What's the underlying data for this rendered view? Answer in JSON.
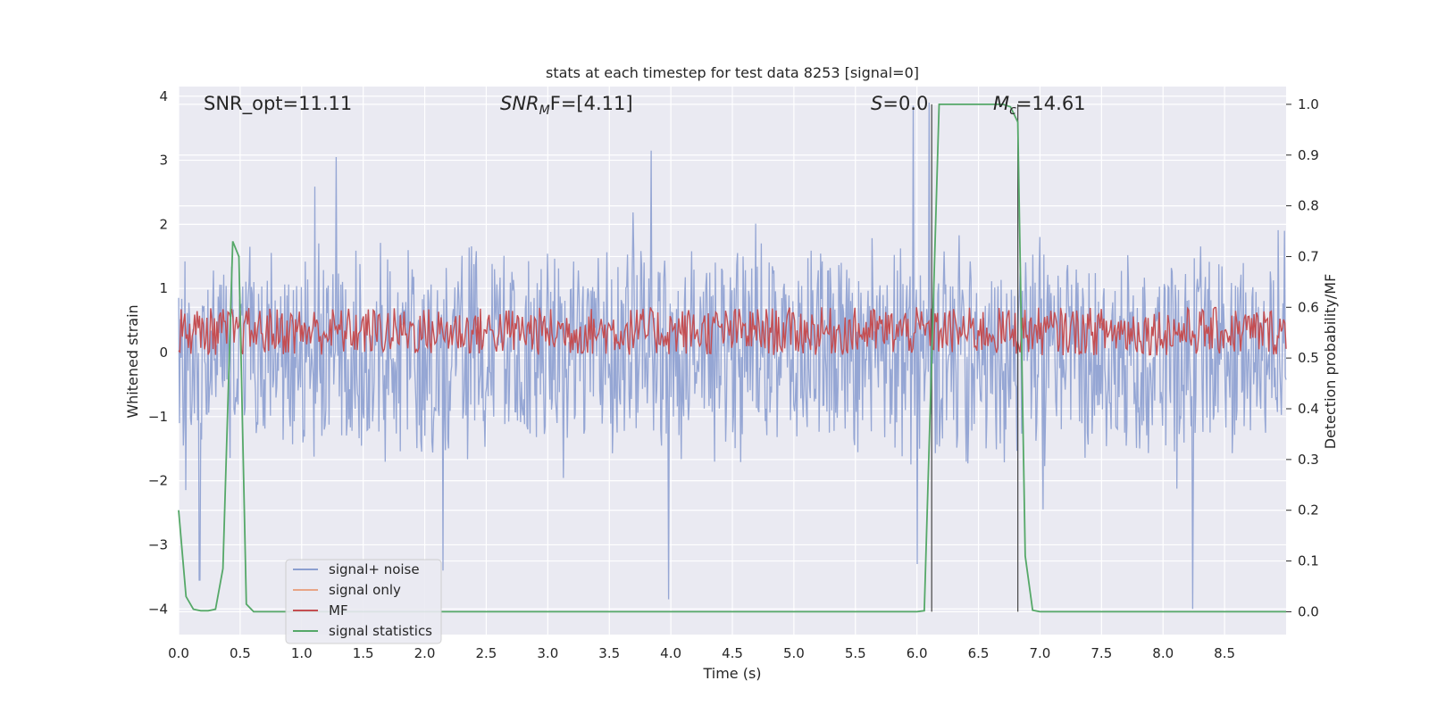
{
  "chart_data": {
    "type": "line",
    "title": "stats at each timestep for test data 8253 [signal=0]",
    "xlabel": "Time (s)",
    "ylabel": "Whitened strain",
    "y2label": "Detection probability/MF",
    "xlim": [
      0,
      9.0
    ],
    "ylim": [
      -4.4,
      4.15
    ],
    "y2lim": [
      -0.045,
      1.035
    ],
    "x_ticks": [
      "0.0",
      "0.5",
      "1.0",
      "1.5",
      "2.0",
      "2.5",
      "3.0",
      "3.5",
      "4.0",
      "4.5",
      "5.0",
      "5.5",
      "6.0",
      "6.5",
      "7.0",
      "7.5",
      "8.0",
      "8.5"
    ],
    "y_ticks": [
      "4",
      "3",
      "2",
      "1",
      "0",
      "−1",
      "−2",
      "−3",
      "−4"
    ],
    "y2_ticks": [
      "1.0",
      "0.9",
      "0.8",
      "0.7",
      "0.6",
      "0.5",
      "0.4",
      "0.3",
      "0.2",
      "0.1",
      "0.0"
    ],
    "grid": true,
    "legend_position": "lower-left",
    "annotations": {
      "snr_opt": "SNR_opt=11.11",
      "snr_mf_main": "SNR",
      "snr_mf_sub": "M",
      "snr_mf_rest": "F=[4.11]",
      "s_var": "S",
      "s_rest": "=0.0",
      "mc_var": "M",
      "mc_sub": "c",
      "mc_rest": "=14.61"
    },
    "vertical_lines_x": [
      6.12,
      6.82
    ],
    "series": [
      {
        "name": "signal+ noise",
        "color": "#8c9fd0",
        "envelope": {
          "typical_low": -1.75,
          "typical_high": 1.75,
          "peaks": [
            [
              1.28,
              3.05
            ],
            [
              3.84,
              3.15
            ],
            [
              5.97,
              3.85
            ],
            [
              6.1,
              3.9
            ],
            [
              0.17,
              -3.55
            ],
            [
              3.98,
              -3.85
            ],
            [
              6.0,
              -3.3
            ],
            [
              8.24,
              -4.0
            ],
            [
              2.15,
              -3.4
            ]
          ]
        }
      },
      {
        "name": "signal only",
        "color": "#e8a587",
        "values": []
      },
      {
        "name": "MF",
        "color": "#c44e52",
        "axis": "right",
        "band": {
          "low": 0.505,
          "high": 0.6,
          "center": 0.55
        }
      },
      {
        "name": "signal statistics",
        "color": "#55a868",
        "axis": "right",
        "x": [
          0.0,
          0.06,
          0.12,
          0.18,
          0.24,
          0.3,
          0.36,
          0.44,
          0.49,
          0.55,
          0.61,
          0.7,
          1.0,
          2.0,
          3.0,
          4.0,
          5.0,
          5.5,
          6.0,
          6.06,
          6.12,
          6.18,
          6.3,
          6.5,
          6.7,
          6.76,
          6.82,
          6.88,
          6.94,
          7.0,
          7.5,
          8.0,
          8.5,
          9.0
        ],
        "y": [
          0.2,
          0.03,
          0.005,
          0.002,
          0.002,
          0.005,
          0.085,
          0.73,
          0.7,
          0.015,
          0.0,
          0.0,
          0.0,
          0.0,
          0.0,
          0.0,
          0.0,
          0.0,
          0.0,
          0.002,
          0.5,
          1.0,
          1.0,
          1.0,
          1.0,
          0.995,
          0.965,
          0.11,
          0.003,
          0.0,
          0.0,
          0.0,
          0.0,
          0.0
        ]
      }
    ]
  }
}
